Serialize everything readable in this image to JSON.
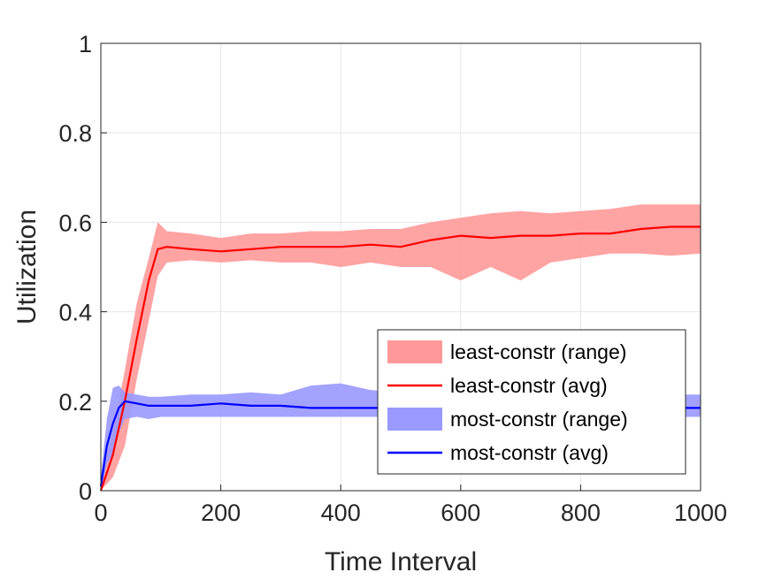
{
  "chart_data": {
    "type": "line",
    "xlabel": "Time Interval",
    "ylabel": "Utilization",
    "xlim": [
      0,
      1000
    ],
    "ylim": [
      0,
      1
    ],
    "xticks": [
      "0",
      "200",
      "400",
      "600",
      "800",
      "1000"
    ],
    "yticks": [
      "0",
      "0.2",
      "0.4",
      "0.6",
      "0.8",
      "1"
    ],
    "grid": true,
    "legend_position": "lower-right",
    "series": [
      {
        "name": "least-constr (avg)",
        "kind": "line",
        "color": "#ff0000",
        "x": [
          0,
          20,
          40,
          60,
          80,
          95,
          110,
          150,
          200,
          250,
          300,
          350,
          400,
          450,
          500,
          550,
          600,
          650,
          700,
          750,
          800,
          850,
          900,
          950,
          1000
        ],
        "y": [
          0.0,
          0.08,
          0.2,
          0.34,
          0.47,
          0.54,
          0.545,
          0.54,
          0.535,
          0.54,
          0.545,
          0.545,
          0.545,
          0.55,
          0.545,
          0.56,
          0.57,
          0.565,
          0.57,
          0.57,
          0.575,
          0.575,
          0.585,
          0.59,
          0.59
        ]
      },
      {
        "name": "least-constr (range)",
        "kind": "band",
        "color": "#ff9999",
        "x": [
          0,
          20,
          40,
          60,
          80,
          95,
          110,
          150,
          200,
          250,
          300,
          350,
          400,
          450,
          500,
          550,
          600,
          650,
          700,
          750,
          800,
          850,
          900,
          950,
          1000
        ],
        "upper": [
          0.02,
          0.13,
          0.27,
          0.42,
          0.52,
          0.6,
          0.58,
          0.575,
          0.565,
          0.575,
          0.575,
          0.58,
          0.58,
          0.585,
          0.585,
          0.6,
          0.61,
          0.62,
          0.625,
          0.62,
          0.625,
          0.63,
          0.64,
          0.64,
          0.64
        ],
        "lower": [
          0.0,
          0.03,
          0.1,
          0.25,
          0.38,
          0.48,
          0.51,
          0.515,
          0.51,
          0.515,
          0.51,
          0.51,
          0.5,
          0.51,
          0.5,
          0.5,
          0.47,
          0.5,
          0.47,
          0.51,
          0.52,
          0.53,
          0.53,
          0.525,
          0.53
        ]
      },
      {
        "name": "most-constr (avg)",
        "kind": "line",
        "color": "#0000ff",
        "x": [
          0,
          10,
          20,
          30,
          40,
          60,
          80,
          100,
          150,
          200,
          250,
          300,
          350,
          400,
          450,
          500,
          550,
          600,
          650,
          700,
          750,
          800,
          850,
          900,
          950,
          1000
        ],
        "y": [
          0.01,
          0.1,
          0.15,
          0.185,
          0.2,
          0.195,
          0.19,
          0.19,
          0.19,
          0.195,
          0.19,
          0.19,
          0.185,
          0.185,
          0.185,
          0.185,
          0.185,
          0.185,
          0.185,
          0.185,
          0.185,
          0.185,
          0.185,
          0.185,
          0.185,
          0.185
        ]
      },
      {
        "name": "most-constr (range)",
        "kind": "band",
        "color": "#9999ff",
        "x": [
          0,
          10,
          20,
          30,
          40,
          60,
          80,
          100,
          150,
          200,
          250,
          300,
          350,
          400,
          450,
          500,
          550,
          600,
          650,
          700,
          750,
          800,
          850,
          900,
          950,
          1000
        ],
        "upper": [
          0.03,
          0.16,
          0.23,
          0.235,
          0.22,
          0.215,
          0.21,
          0.21,
          0.215,
          0.215,
          0.22,
          0.215,
          0.235,
          0.24,
          0.225,
          0.22,
          0.215,
          0.215,
          0.215,
          0.215,
          0.215,
          0.215,
          0.215,
          0.215,
          0.215,
          0.215
        ],
        "lower": [
          0.0,
          0.06,
          0.08,
          0.13,
          0.16,
          0.165,
          0.16,
          0.165,
          0.165,
          0.165,
          0.165,
          0.165,
          0.165,
          0.165,
          0.165,
          0.165,
          0.165,
          0.165,
          0.165,
          0.165,
          0.165,
          0.165,
          0.165,
          0.165,
          0.165,
          0.165
        ]
      }
    ],
    "legend": [
      "least-constr (range)",
      "least-constr (avg)",
      "most-constr (range)",
      "most-constr (avg)"
    ]
  }
}
